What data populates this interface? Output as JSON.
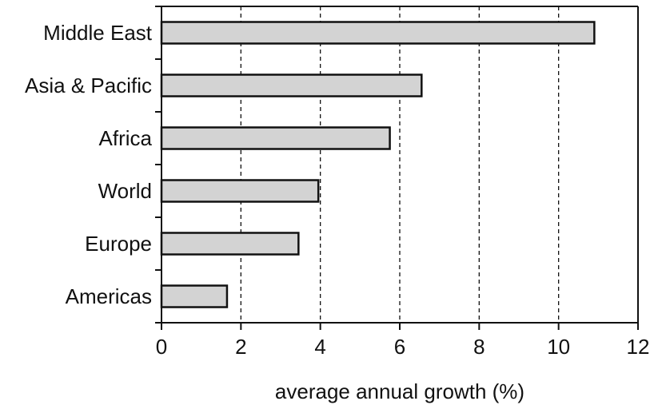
{
  "chart_data": {
    "type": "bar",
    "orientation": "horizontal",
    "categories": [
      "Middle East",
      "Asia & Pacific",
      "Africa",
      "World",
      "Europe",
      "Americas"
    ],
    "values": [
      10.9,
      6.55,
      5.75,
      3.95,
      3.45,
      1.65
    ],
    "xlabel": "average annual growth (%)",
    "ylabel": "",
    "title": "",
    "xlim": [
      0,
      12
    ],
    "xticks": [
      0,
      2,
      4,
      6,
      8,
      10,
      12
    ],
    "grid": "vertical dashed lines at major x ticks",
    "legend": "none",
    "colors": {
      "bar_fill": "#d3d3d3",
      "bar_stroke": "#111111",
      "axis": "#111111",
      "grid": "#111111"
    }
  }
}
